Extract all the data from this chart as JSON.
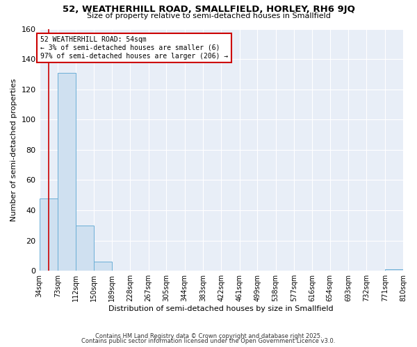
{
  "title": "52, WEATHERHILL ROAD, SMALLFIELD, HORLEY, RH6 9JQ",
  "subtitle": "Size of property relative to semi-detached houses in Smallfield",
  "xlabel": "Distribution of semi-detached houses by size in Smallfield",
  "ylabel": "Number of semi-detached properties",
  "bins": [
    34,
    73,
    112,
    150,
    189,
    228,
    267,
    305,
    344,
    383,
    422,
    461,
    499,
    538,
    577,
    616,
    654,
    693,
    732,
    771,
    810
  ],
  "bin_labels": [
    "34sqm",
    "73sqm",
    "112sqm",
    "150sqm",
    "189sqm",
    "228sqm",
    "267sqm",
    "305sqm",
    "344sqm",
    "383sqm",
    "422sqm",
    "461sqm",
    "499sqm",
    "538sqm",
    "577sqm",
    "616sqm",
    "654sqm",
    "693sqm",
    "732sqm",
    "771sqm",
    "810sqm"
  ],
  "counts": [
    48,
    131,
    30,
    6,
    0,
    0,
    0,
    0,
    0,
    0,
    0,
    0,
    0,
    0,
    0,
    0,
    0,
    0,
    0,
    1,
    0
  ],
  "property_size": 54,
  "property_label": "52 WEATHERHILL ROAD: 54sqm",
  "annotation_line1": "← 3% of semi-detached houses are smaller (6)",
  "annotation_line2": "97% of semi-detached houses are larger (206) →",
  "bar_color": "#cfe0f0",
  "bar_edge_color": "#6aaed6",
  "marker_line_color": "#cc0000",
  "annotation_box_edge": "#cc0000",
  "background_color": "#ffffff",
  "plot_bg_color": "#e8eef7",
  "grid_color": "#ffffff",
  "ylim": [
    0,
    160
  ],
  "yticks": [
    0,
    20,
    40,
    60,
    80,
    100,
    120,
    140,
    160
  ],
  "footer1": "Contains HM Land Registry data © Crown copyright and database right 2025.",
  "footer2": "Contains public sector information licensed under the Open Government Licence v3.0."
}
